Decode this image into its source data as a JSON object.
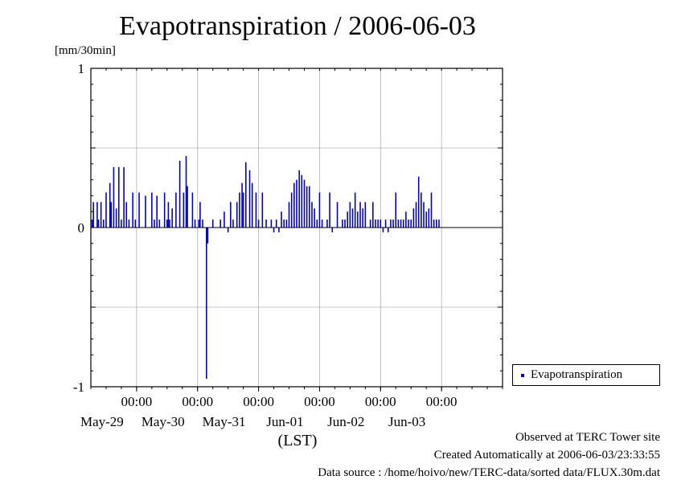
{
  "chart_data": {
    "type": "bar",
    "title": "Evapotranspiration / 2006-06-03",
    "ylabel": "[mm/30min]",
    "xlabel": "(LST)",
    "ylim": [
      -1,
      1
    ],
    "yticks": [
      "1",
      "0",
      "-1"
    ],
    "xlim": [
      "2006-05-28 06:00",
      "2006-06-03 24:00"
    ],
    "xticks": [
      {
        "time": "00:00",
        "date": "May-29"
      },
      {
        "time": "00:00",
        "date": "May-30"
      },
      {
        "time": "00:00",
        "date": "May-31"
      },
      {
        "time": "00:00",
        "date": "Jun-01"
      },
      {
        "time": "00:00",
        "date": "Jun-02"
      },
      {
        "time": "00:00",
        "date": "Jun-03"
      }
    ],
    "grid": true,
    "legend_position": "right",
    "series": [
      {
        "name": "Evapotranspiration",
        "color": "#0000cc",
        "points": [
          [
            "05-28 06:30",
            0.05
          ],
          [
            "05-28 07:00",
            0.16
          ],
          [
            "05-28 08:30",
            0.16
          ],
          [
            "05-28 09:00",
            0.05
          ],
          [
            "05-28 10:00",
            0.16
          ],
          [
            "05-28 11:00",
            0.05
          ],
          [
            "05-28 12:00",
            0.22
          ],
          [
            "05-28 13:30",
            0.28
          ],
          [
            "05-28 14:00",
            0.16
          ],
          [
            "05-28 15:00",
            0.38
          ],
          [
            "05-28 16:00",
            0.12
          ],
          [
            "05-28 17:00",
            0.38
          ],
          [
            "05-28 18:00",
            0.05
          ],
          [
            "05-28 19:00",
            0.38
          ],
          [
            "05-28 20:00",
            0.16
          ],
          [
            "05-28 21:00",
            0.05
          ],
          [
            "05-28 22:30",
            0.22
          ],
          [
            "05-28 23:30",
            0.05
          ],
          [
            "05-29 01:00",
            0.22
          ],
          [
            "05-29 03:30",
            0.2
          ],
          [
            "05-29 06:00",
            0.22
          ],
          [
            "05-29 07:00",
            0.05
          ],
          [
            "05-29 08:00",
            0.2
          ],
          [
            "05-29 09:00",
            0.05
          ],
          [
            "05-29 11:00",
            0.22
          ],
          [
            "05-29 12:00",
            0.05
          ],
          [
            "05-29 12:30",
            0.16
          ],
          [
            "05-29 13:00",
            0.05
          ],
          [
            "05-29 14:00",
            0.12
          ],
          [
            "05-29 15:30",
            0.22
          ],
          [
            "05-29 17:00",
            0.42
          ],
          [
            "05-29 18:30",
            0.22
          ],
          [
            "05-29 19:30",
            0.45
          ],
          [
            "05-29 20:00",
            0.26
          ],
          [
            "05-29 22:00",
            0.22
          ],
          [
            "05-29 23:00",
            0.05
          ],
          [
            "05-30 00:30",
            0.05
          ],
          [
            "05-30 01:00",
            0.16
          ],
          [
            "05-30 02:00",
            0.05
          ],
          [
            "05-30 03:30",
            -0.95
          ],
          [
            "05-30 04:00",
            -0.1
          ],
          [
            "05-30 06:00",
            0.05
          ],
          [
            "05-30 09:00",
            0.05
          ],
          [
            "05-30 10:30",
            0.1
          ],
          [
            "05-30 12:00",
            -0.03
          ],
          [
            "05-30 13:00",
            0.16
          ],
          [
            "05-30 14:00",
            0.05
          ],
          [
            "05-30 15:30",
            0.16
          ],
          [
            "05-30 16:30",
            0.22
          ],
          [
            "05-30 17:30",
            0.28
          ],
          [
            "05-30 18:00",
            0.22
          ],
          [
            "05-30 19:00",
            0.41
          ],
          [
            "05-30 20:30",
            0.36
          ],
          [
            "05-30 21:30",
            0.28
          ],
          [
            "05-30 23:00",
            0.22
          ],
          [
            "05-31 00:00",
            0.05
          ],
          [
            "05-31 01:30",
            0.22
          ],
          [
            "05-31 03:00",
            0.05
          ],
          [
            "05-31 05:00",
            0.05
          ],
          [
            "05-31 06:00",
            -0.03
          ],
          [
            "05-31 07:00",
            0.05
          ],
          [
            "05-31 08:00",
            -0.03
          ],
          [
            "05-31 09:00",
            0.1
          ],
          [
            "05-31 10:00",
            0.05
          ],
          [
            "05-31 11:00",
            0.05
          ],
          [
            "05-31 12:00",
            0.16
          ],
          [
            "05-31 13:00",
            0.22
          ],
          [
            "05-31 14:00",
            0.28
          ],
          [
            "05-31 15:00",
            0.3
          ],
          [
            "05-31 16:00",
            0.36
          ],
          [
            "05-31 17:00",
            0.33
          ],
          [
            "05-31 18:00",
            0.3
          ],
          [
            "05-31 19:00",
            0.26
          ],
          [
            "05-31 20:00",
            0.26
          ],
          [
            "05-31 21:00",
            0.16
          ],
          [
            "05-31 22:00",
            0.12
          ],
          [
            "05-31 23:00",
            0.05
          ],
          [
            "06-01 00:00",
            0.22
          ],
          [
            "06-01 01:00",
            0.05
          ],
          [
            "06-01 03:00",
            0.05
          ],
          [
            "06-01 04:00",
            0.22
          ],
          [
            "06-01 05:00",
            -0.03
          ],
          [
            "06-01 07:00",
            0.16
          ],
          [
            "06-01 09:00",
            0.05
          ],
          [
            "06-01 10:00",
            0.05
          ],
          [
            "06-01 11:00",
            0.1
          ],
          [
            "06-01 12:00",
            0.16
          ],
          [
            "06-01 13:00",
            0.12
          ],
          [
            "06-01 14:00",
            0.22
          ],
          [
            "06-01 15:00",
            0.1
          ],
          [
            "06-01 16:00",
            0.16
          ],
          [
            "06-01 17:00",
            0.12
          ],
          [
            "06-01 18:00",
            0.16
          ],
          [
            "06-01 20:00",
            0.05
          ],
          [
            "06-01 21:00",
            0.16
          ],
          [
            "06-01 22:00",
            0.05
          ],
          [
            "06-01 23:00",
            0.05
          ],
          [
            "06-02 00:00",
            0.05
          ],
          [
            "06-02 01:00",
            -0.03
          ],
          [
            "06-02 02:00",
            0.05
          ],
          [
            "06-02 03:00",
            -0.03
          ],
          [
            "06-02 04:00",
            0.05
          ],
          [
            "06-02 05:00",
            0.05
          ],
          [
            "06-02 06:00",
            0.22
          ],
          [
            "06-02 07:00",
            0.05
          ],
          [
            "06-02 08:00",
            0.05
          ],
          [
            "06-02 09:00",
            0.05
          ],
          [
            "06-02 10:00",
            0.1
          ],
          [
            "06-02 11:00",
            0.05
          ],
          [
            "06-02 12:00",
            0.05
          ],
          [
            "06-02 13:00",
            0.12
          ],
          [
            "06-02 14:00",
            0.16
          ],
          [
            "06-02 15:00",
            0.32
          ],
          [
            "06-02 16:00",
            0.22
          ],
          [
            "06-02 17:00",
            0.16
          ],
          [
            "06-02 18:00",
            0.1
          ],
          [
            "06-02 19:00",
            0.12
          ],
          [
            "06-02 20:00",
            0.22
          ],
          [
            "06-02 21:00",
            0.05
          ],
          [
            "06-02 22:00",
            0.05
          ],
          [
            "06-02 23:00",
            0.05
          ]
        ]
      }
    ]
  },
  "footer": {
    "line1": "Observed at TERC Tower site",
    "line2": "Created Automatically at 2006-06-03/23:33:55",
    "line3": "Data source : /home/hoivo/new/TERC-data/sorted  data/FLUX.30m.dat"
  }
}
